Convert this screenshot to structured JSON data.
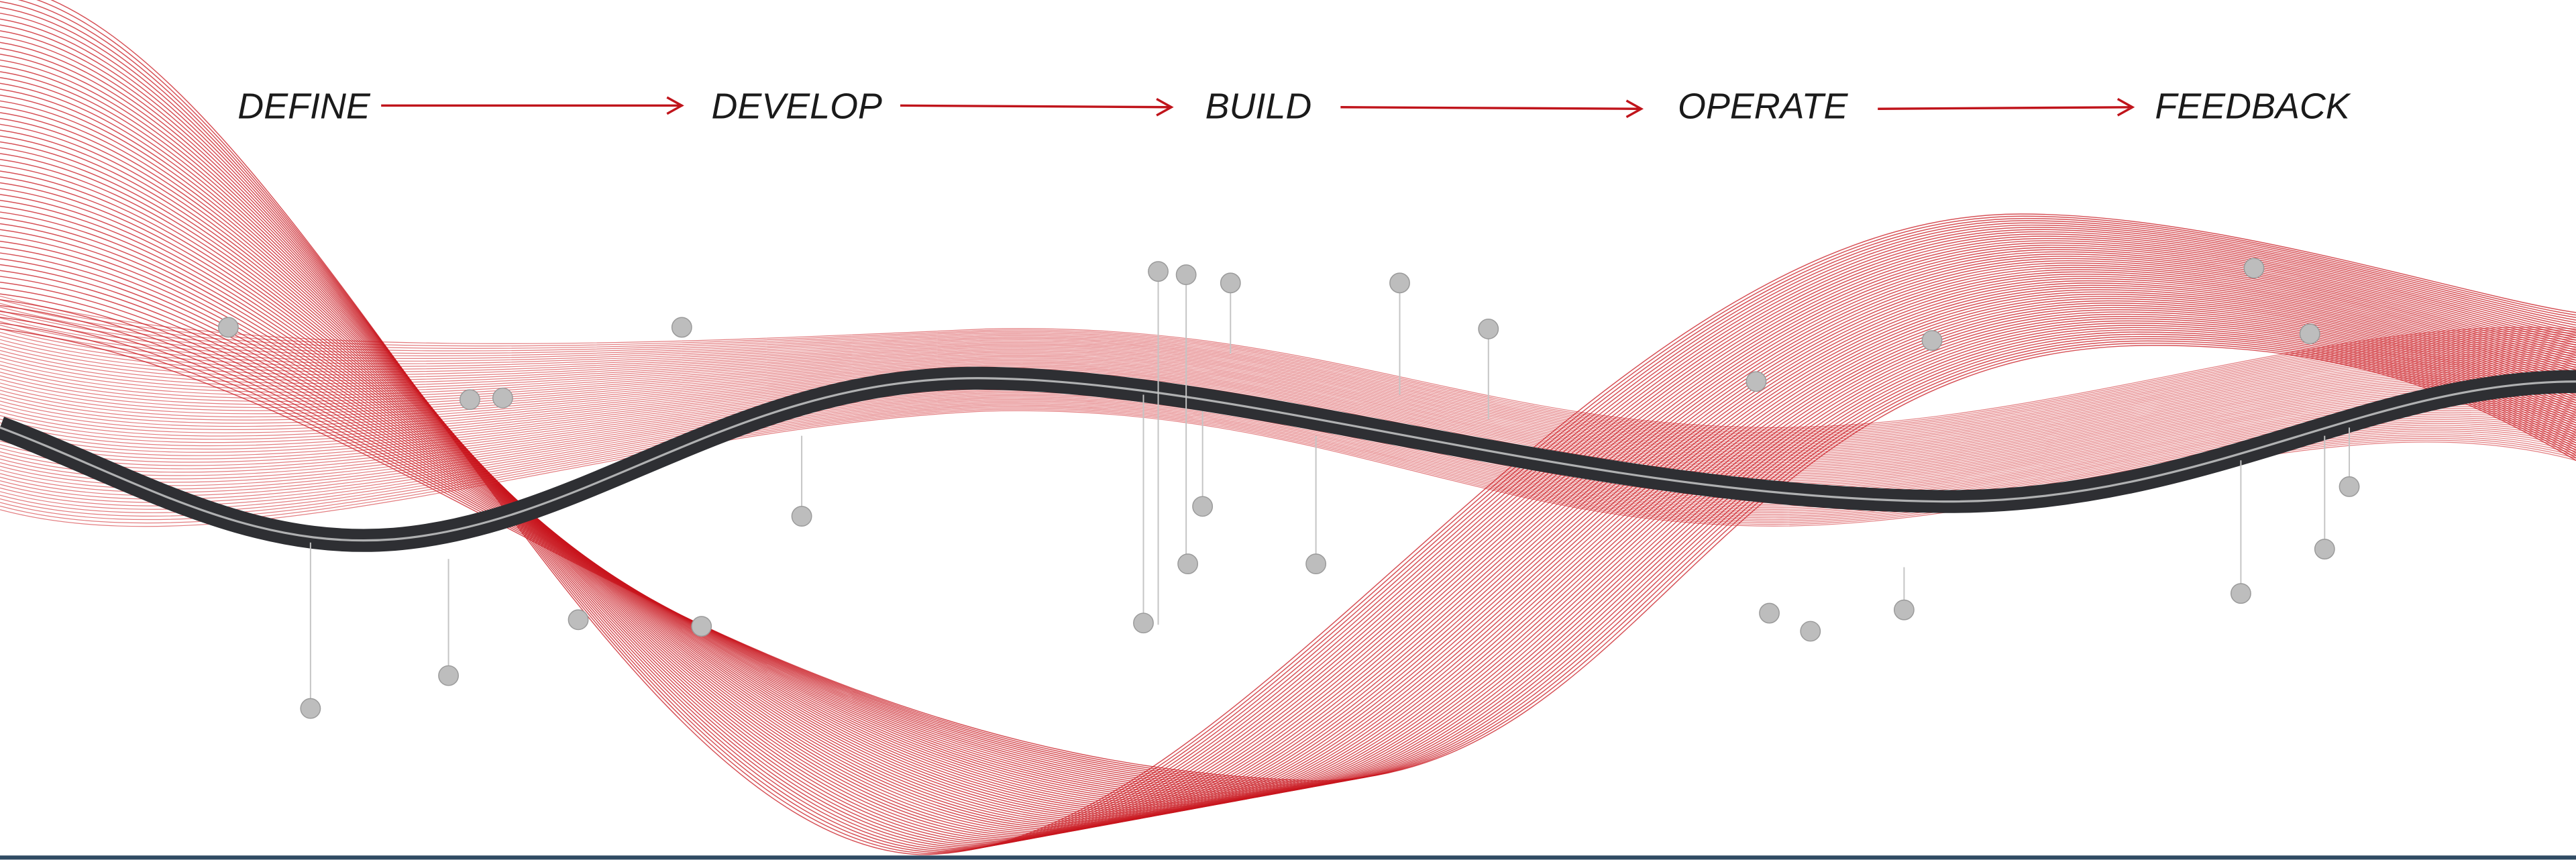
{
  "stages": [
    {
      "label": "DEFINE"
    },
    {
      "label": "DEVELOP"
    },
    {
      "label": "BUILD"
    },
    {
      "label": "OPERATE"
    },
    {
      "label": "FEEDBACK"
    }
  ]
}
